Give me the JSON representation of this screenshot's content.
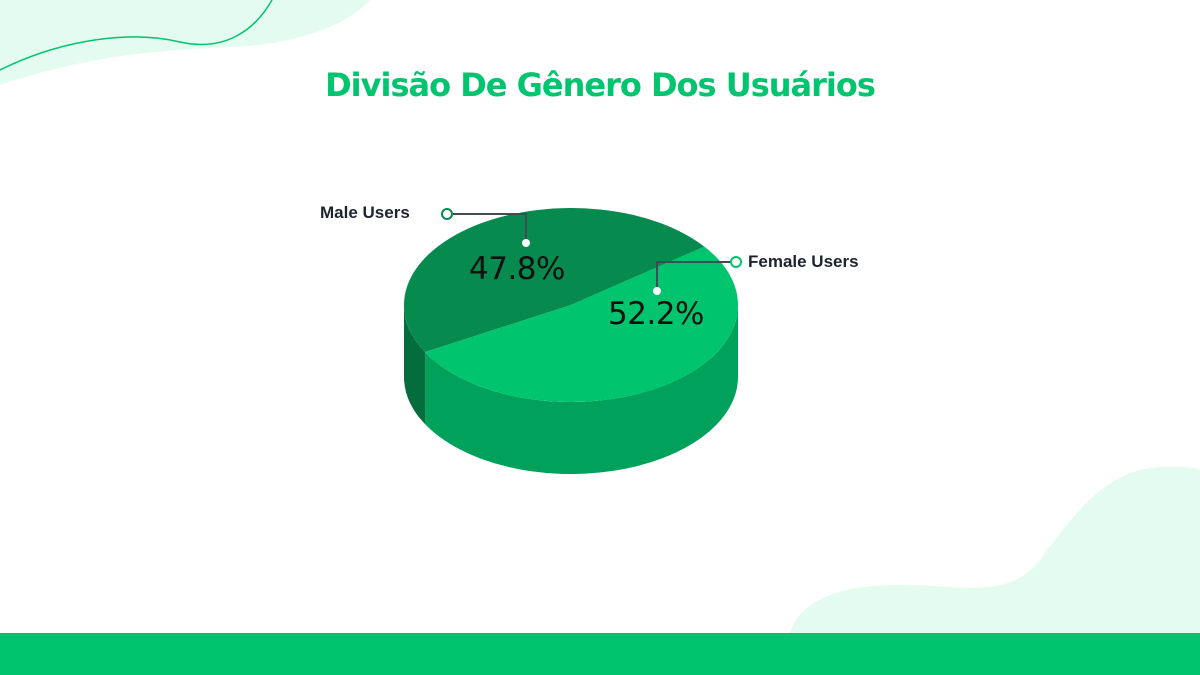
{
  "chart_data": {
    "type": "pie",
    "title": "Divisão De Gênero Dos Usuários",
    "categories": [
      "Male Users",
      "Female Users"
    ],
    "values": [
      47.8,
      52.2
    ],
    "value_labels": [
      "47.8%",
      "52.2%"
    ],
    "colors": {
      "Male Users": "#078a4e",
      "Female Users": "#00c46e"
    },
    "legend": "callouts",
    "style": "3d"
  },
  "colors": {
    "accent": "#00c46e",
    "decor": "#e3fbf0"
  }
}
